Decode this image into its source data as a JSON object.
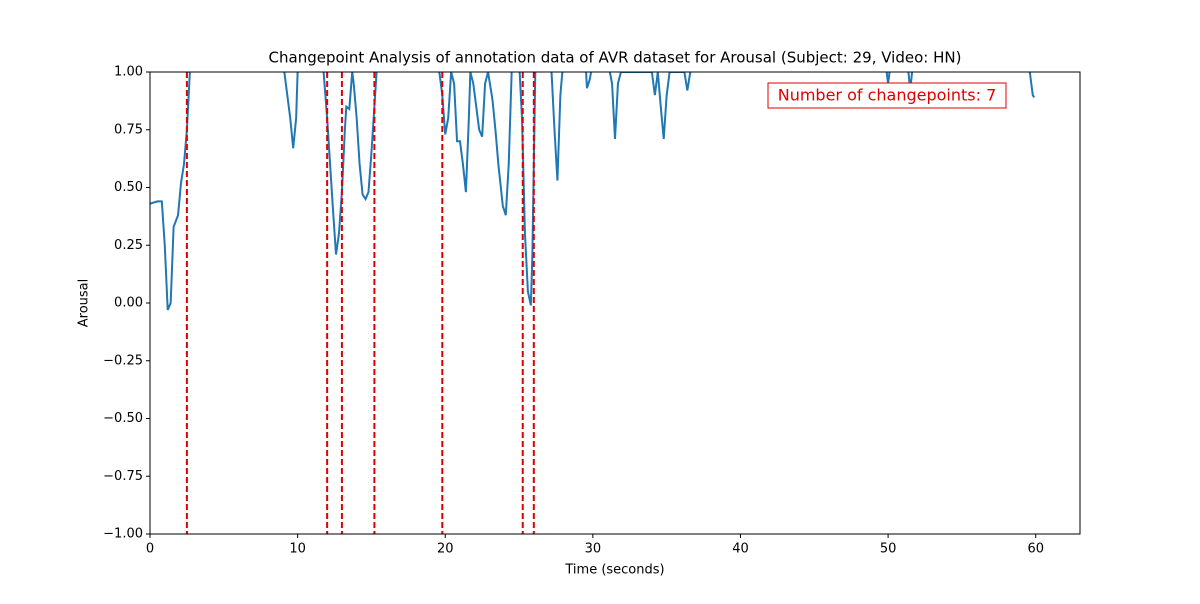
{
  "chart_data": {
    "type": "line",
    "title": "Changepoint Analysis of annotation data of AVR dataset for Arousal (Subject: 29, Video: HN)",
    "xlabel": "Time (seconds)",
    "ylabel": "Arousal",
    "annotation": "Number of changepoints: 7",
    "x": [
      0,
      0.5,
      0.8,
      1.0,
      1.2,
      1.4,
      1.6,
      1.9,
      2.1,
      2.3,
      2.5,
      2.7,
      3.0,
      8.8,
      9.1,
      9.3,
      9.5,
      9.7,
      9.9,
      10.0,
      10.2,
      11.7,
      12.0,
      12.2,
      12.4,
      12.6,
      12.8,
      13.0,
      13.2,
      13.3,
      13.5,
      13.7,
      13.8,
      14.0,
      14.2,
      14.4,
      14.6,
      14.8,
      15.0,
      15.2,
      15.4,
      15.6,
      19.5,
      19.8,
      20.0,
      20.2,
      20.4,
      20.6,
      20.8,
      21.0,
      21.2,
      21.4,
      21.6,
      21.7,
      21.9,
      22.1,
      22.3,
      22.5,
      22.7,
      22.9,
      23.2,
      23.4,
      23.6,
      23.9,
      24.1,
      24.3,
      24.5,
      25.0,
      25.2,
      25.4,
      25.6,
      25.8,
      25.9,
      26.0,
      26.1,
      26.5,
      27.2,
      27.4,
      27.6,
      27.8,
      28.0,
      29.5,
      29.6,
      29.8,
      30.0,
      31.0,
      31.3,
      31.5,
      31.7,
      31.9,
      34.0,
      34.2,
      34.4,
      34.6,
      34.8,
      35.0,
      35.2,
      36.2,
      36.4,
      36.6,
      37.2,
      49.8,
      50.0,
      50.2,
      51.3,
      51.5,
      51.7,
      58.5,
      59.6,
      59.8,
      59.9
    ],
    "series": [
      {
        "name": "Arousal",
        "color": "#1f77b4",
        "values": [
          0.43,
          0.44,
          0.44,
          0.25,
          -0.03,
          0.0,
          0.33,
          0.38,
          0.52,
          0.6,
          0.75,
          1.0,
          1.05,
          1.05,
          1.0,
          0.9,
          0.8,
          0.67,
          0.8,
          1.0,
          1.05,
          1.05,
          0.8,
          0.6,
          0.4,
          0.21,
          0.3,
          0.48,
          0.75,
          0.85,
          0.84,
          1.0,
          0.95,
          0.8,
          0.6,
          0.47,
          0.45,
          0.48,
          0.65,
          0.85,
          1.05,
          1.05,
          1.05,
          0.9,
          0.73,
          0.8,
          1.0,
          0.95,
          0.7,
          0.7,
          0.6,
          0.48,
          0.8,
          1.0,
          0.95,
          0.85,
          0.75,
          0.72,
          0.95,
          1.0,
          0.88,
          0.75,
          0.6,
          0.42,
          0.38,
          0.6,
          1.0,
          1.05,
          0.8,
          0.3,
          0.05,
          -0.01,
          0.2,
          0.6,
          1.0,
          1.05,
          1.0,
          0.75,
          0.53,
          0.9,
          1.05,
          1.05,
          0.93,
          0.97,
          1.05,
          1.05,
          0.95,
          0.71,
          0.95,
          1.0,
          1.0,
          0.9,
          1.0,
          0.85,
          0.71,
          0.9,
          1.0,
          1.0,
          0.92,
          1.0,
          1.05,
          1.05,
          0.95,
          1.05,
          1.05,
          0.92,
          1.05,
          1.05,
          1.0,
          0.9,
          0.89
        ]
      }
    ],
    "changepoints": {
      "color": "#e00000",
      "values": [
        2.5,
        12.0,
        13.0,
        15.2,
        19.8,
        25.25,
        26.0
      ]
    },
    "xlim": [
      0,
      63
    ],
    "xticks": [
      0,
      10,
      20,
      30,
      40,
      50,
      60
    ],
    "ylim": [
      -1,
      1
    ],
    "yticks": [
      {
        "value": -1,
        "label": "−1.00"
      },
      {
        "value": -0.75,
        "label": "−0.75"
      },
      {
        "value": -0.5,
        "label": "−0.50"
      },
      {
        "value": -0.25,
        "label": "−0.25"
      },
      {
        "value": 0,
        "label": "0.00"
      },
      {
        "value": 0.25,
        "label": "0.25"
      },
      {
        "value": 0.5,
        "label": "0.50"
      },
      {
        "value": 0.75,
        "label": "0.75"
      },
      {
        "value": 1,
        "label": "1.00"
      }
    ]
  }
}
